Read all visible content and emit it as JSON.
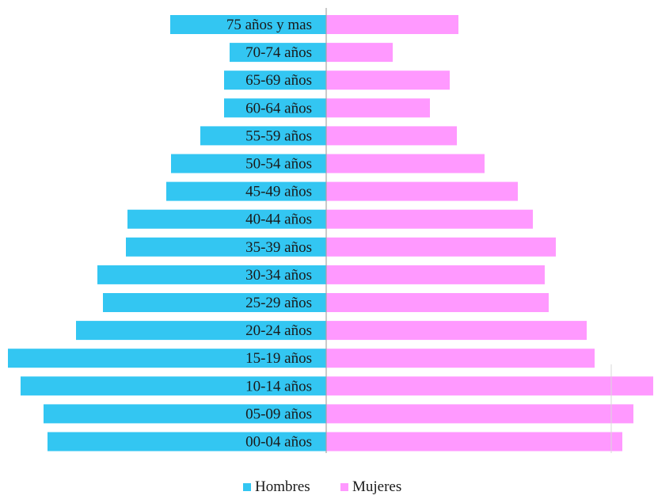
{
  "chart_data": {
    "type": "bar",
    "orientation": "horizontal",
    "subtype": "population-pyramid",
    "categories": [
      "75 años y mas",
      "70-74 años",
      "65-69 años",
      "60-64 años",
      "55-59 años",
      "50-54 años",
      "45-49 años",
      "40-44 años",
      "35-39 años",
      "30-34 años",
      "25-29 años",
      "20-24 años",
      "15-19 años",
      "10-14 años",
      "05-09 años",
      "00-04 años"
    ],
    "series": [
      {
        "name": "Hombres",
        "color": "#33C6F2",
        "values": [
          197,
          122,
          129,
          129,
          159,
          196,
          202,
          251,
          253,
          289,
          282,
          316,
          402,
          386,
          357,
          352
        ]
      },
      {
        "name": "Mujeres",
        "color": "#FF99FF",
        "values": [
          167,
          84,
          156,
          131,
          165,
          200,
          242,
          261,
          290,
          276,
          281,
          329,
          339,
          413,
          388,
          374
        ]
      }
    ],
    "axis_color": "#A6A6A6",
    "grid": false,
    "legend_position": "bottom-center"
  }
}
